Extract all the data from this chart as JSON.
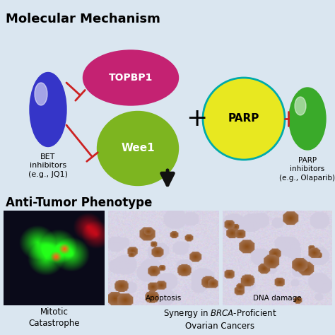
{
  "bg_color": "#dae6f0",
  "title_top": "Molecular Mechanism",
  "title_bottom": "Anti-Tumor Phenotype",
  "bet_label": "BET\ninhibitors\n(e.g., JQ1)",
  "parp_inh_label": "PARP\ninhibitors\n(e.g., Olaparib)",
  "topbp1_label": "TOPBP1",
  "wee1_label": "Wee1",
  "parp_label": "PARP",
  "plus_label": "+",
  "mitotic_label": "Mitotic\nCatastrophe",
  "apoptosis_label": "Apoptosis",
  "dna_damage_label": "DNA damage",
  "synergy_line1": "Synergy in ",
  "synergy_brca": "BRCA",
  "synergy_line1b": "-Proficient",
  "synergy_line2": "Ovarian Cancers",
  "bet_color": "#3535c8",
  "bet_grad_color": "#6060ee",
  "topbp1_color": "#c42272",
  "wee1_color": "#7db520",
  "parp_color": "#e8e820",
  "parp_inh_color": "#3aaa2a",
  "inhibition_color": "#cc2222",
  "arrow_color": "#111111",
  "parp_outline_color": "#00aaaa"
}
